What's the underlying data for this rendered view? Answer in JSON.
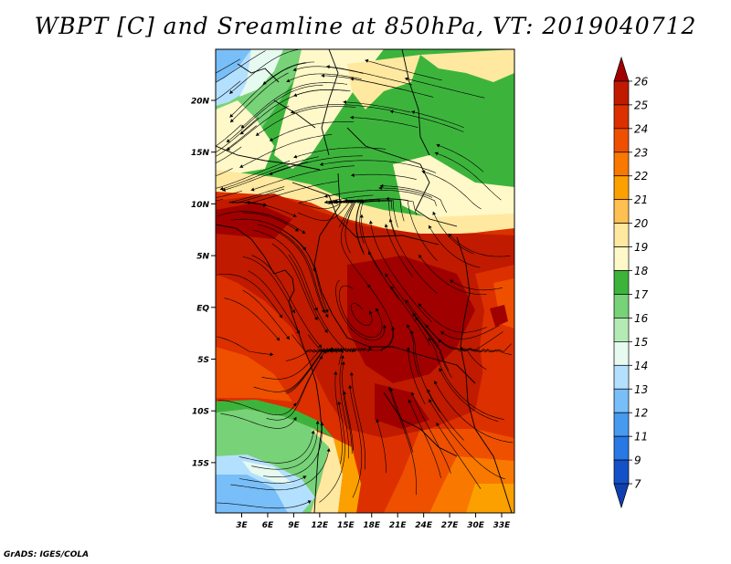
{
  "title": "WBPT [C] and Sreamline at 850hPa, VT: 2019040712",
  "footer": "GrADS: IGES/COLA",
  "map": {
    "variable": "WBPT",
    "units": "C",
    "level": "850hPa",
    "valid_time": "2019040712",
    "lat_labels": [
      "20N",
      "15N",
      "10N",
      "5N",
      "EQ",
      "5S",
      "10S",
      "15S"
    ],
    "lon_labels": [
      "3E",
      "6E",
      "9E",
      "12E",
      "15E",
      "18E",
      "21E",
      "24E",
      "27E",
      "30E",
      "33E"
    ]
  },
  "colorbar": {
    "labels": [
      "26",
      "25",
      "24",
      "23",
      "22",
      "21",
      "20",
      "19",
      "18",
      "17",
      "16",
      "15",
      "14",
      "13",
      "12",
      "11",
      "9",
      "7"
    ],
    "colors": [
      "#a00000",
      "#c01a00",
      "#dc3000",
      "#ee5000",
      "#f87800",
      "#fca000",
      "#fec050",
      "#ffe8a0",
      "#fff8c8",
      "#3cb43c",
      "#78d278",
      "#b4ebb4",
      "#e6faf0",
      "#b4e0ff",
      "#78bef8",
      "#469af0",
      "#2878e6",
      "#1450c8",
      "#1040b0"
    ]
  }
}
